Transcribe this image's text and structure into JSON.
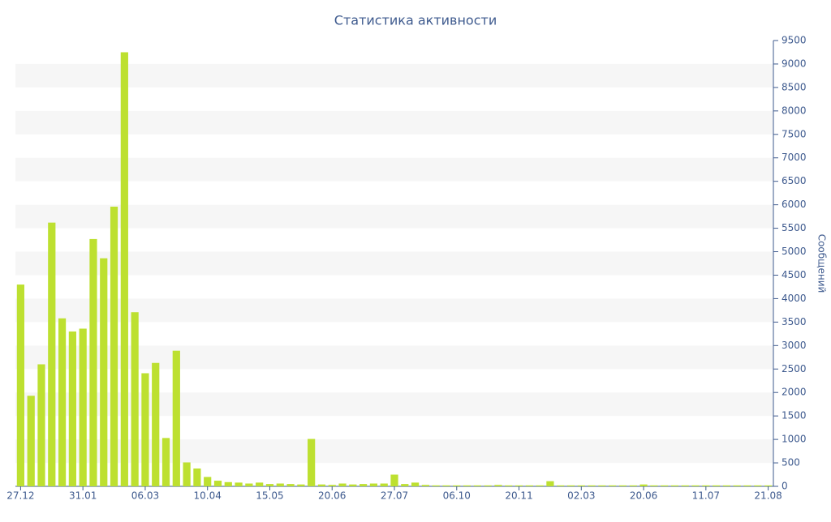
{
  "chart_data": {
    "type": "bar",
    "title": "Статистика активности",
    "y_label": "Сообщений",
    "categories": [
      "27.12",
      null,
      null,
      null,
      null,
      null,
      "31.01",
      null,
      null,
      null,
      null,
      null,
      "06.03",
      null,
      null,
      null,
      null,
      null,
      "10.04",
      null,
      null,
      null,
      null,
      null,
      "15.05",
      null,
      null,
      null,
      null,
      null,
      "20.06",
      null,
      null,
      null,
      null,
      null,
      "27.07",
      null,
      null,
      null,
      null,
      null,
      "06.10",
      null,
      null,
      null,
      null,
      null,
      "20.11",
      null,
      null,
      null,
      null,
      null,
      "02.03",
      null,
      null,
      null,
      null,
      null,
      "20.06",
      null,
      null,
      null,
      null,
      null,
      "11.07",
      null,
      null,
      null,
      null,
      null,
      "21.08"
    ],
    "values": [
      4300,
      1930,
      2600,
      5620,
      3580,
      3300,
      3360,
      5270,
      4860,
      5960,
      9250,
      3710,
      2410,
      2630,
      1030,
      2890,
      510,
      380,
      200,
      120,
      90,
      80,
      60,
      80,
      50,
      60,
      50,
      40,
      1010,
      40,
      30,
      60,
      40,
      50,
      60,
      60,
      250,
      50,
      80,
      30,
      20,
      20,
      20,
      20,
      20,
      20,
      30,
      20,
      20,
      20,
      20,
      110,
      20,
      20,
      20,
      20,
      20,
      20,
      20,
      20,
      40,
      20,
      20,
      20,
      20,
      20,
      20,
      20,
      20,
      20,
      20,
      20,
      20
    ],
    "color": "#bde030",
    "ylim": [
      0,
      9500
    ],
    "yticks": [
      0,
      500,
      1000,
      1500,
      2000,
      2500,
      3000,
      3500,
      4000,
      4500,
      5000,
      5500,
      6000,
      6500,
      7000,
      7500,
      8000,
      8500,
      9000,
      9500
    ],
    "y_axis_side": "right",
    "grid": "bands"
  }
}
